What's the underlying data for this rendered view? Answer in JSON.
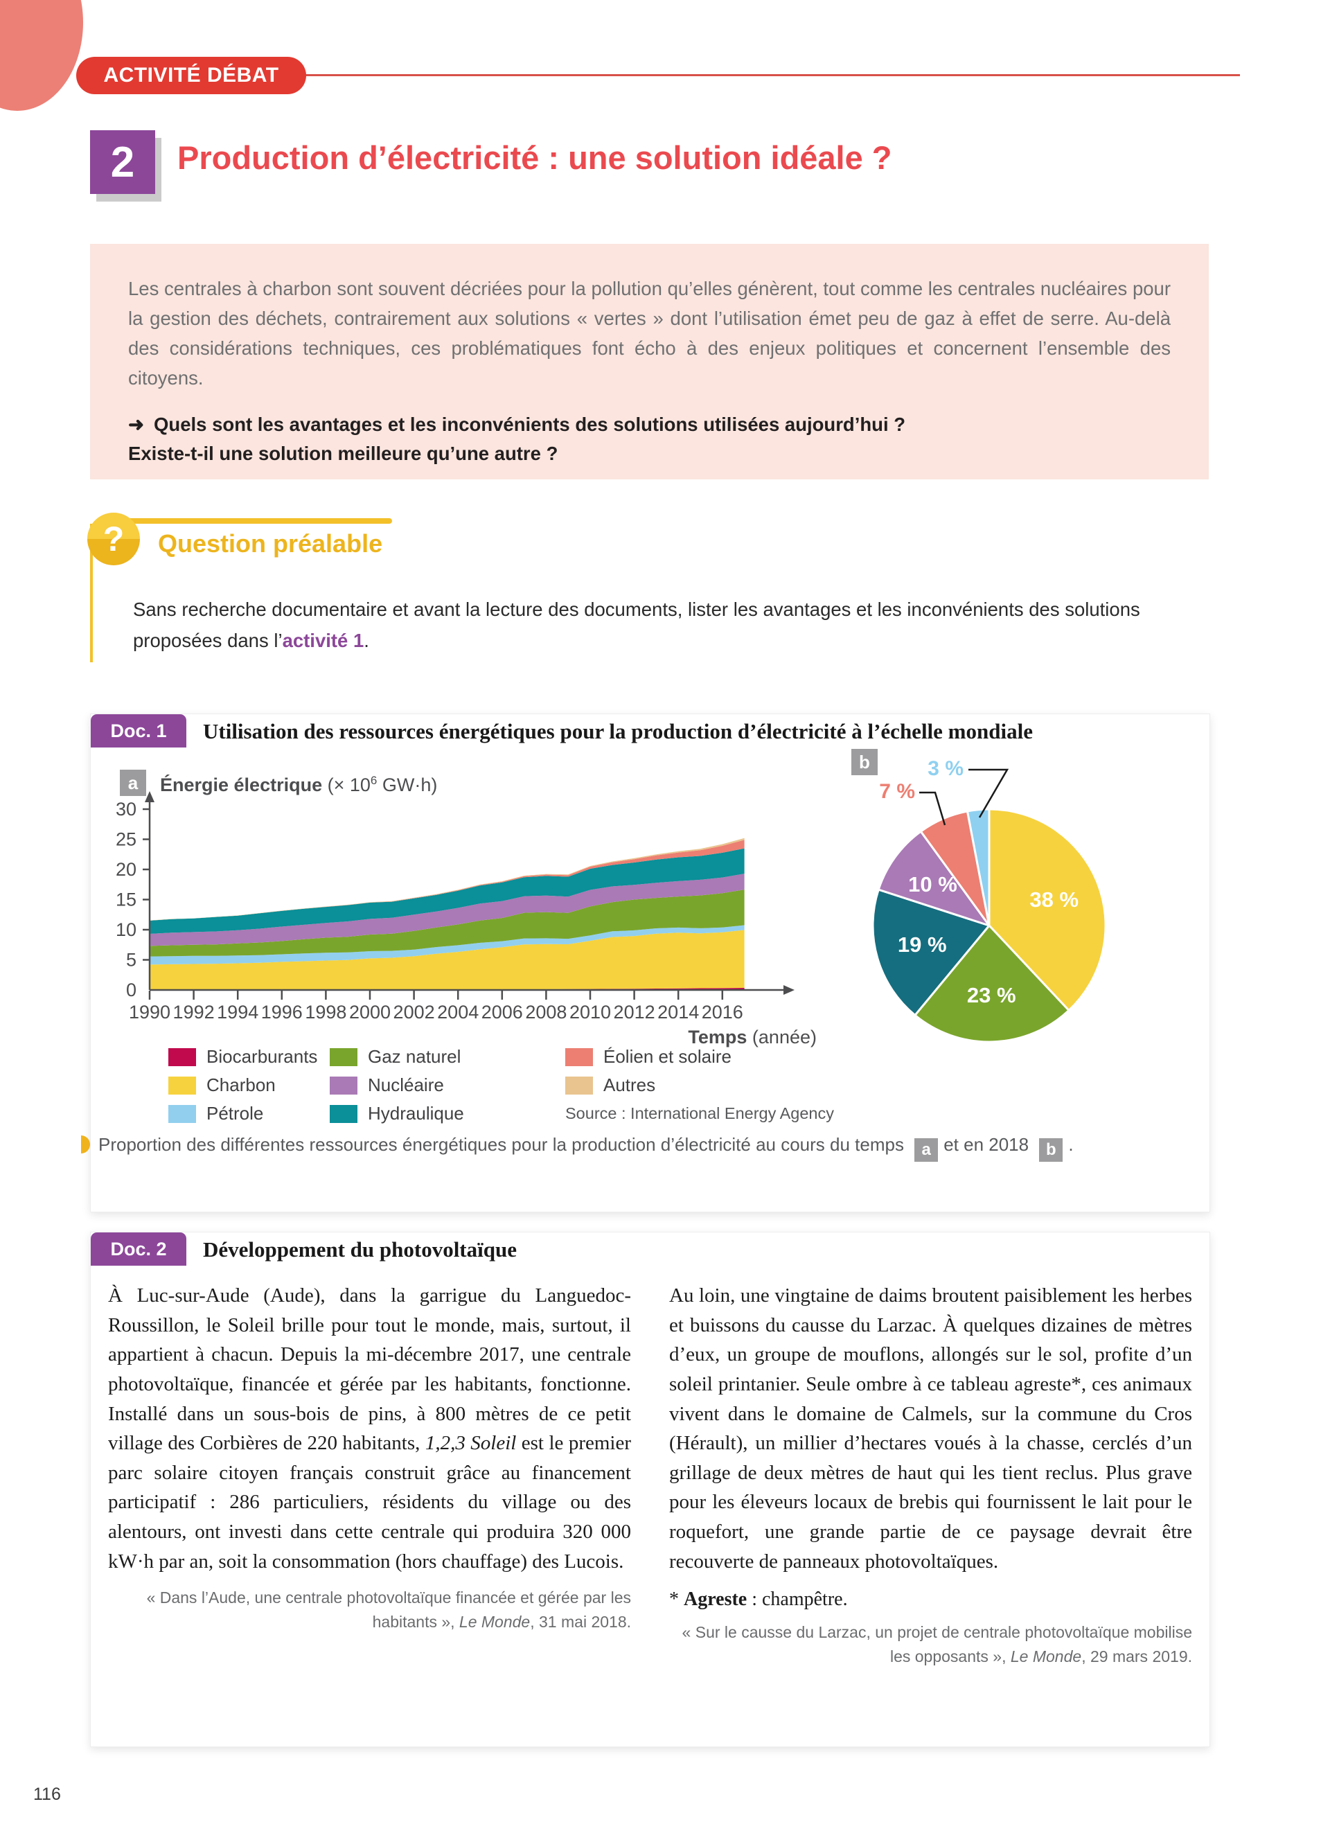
{
  "page": {
    "number": "116"
  },
  "banner": {
    "label": "ACTIVITÉ DÉBAT"
  },
  "header": {
    "number": "2",
    "title": "Production d’électricité : une solution idéale ?"
  },
  "intro": {
    "paragraph": "Les centrales à charbon sont souvent décriées pour la pollution qu’elles génèrent, tout comme les centrales nucléaires pour la gestion des déchets, contrairement aux solutions « vertes » dont l’utilisation émet peu de gaz à effet de serre. Au-delà des considérations techniques, ces problématiques font écho à des enjeux politiques et concernent l’ensemble des citoyens.",
    "arrow_icon": "➜",
    "question_line1": "Quels sont les avantages et les inconvénients des solutions utilisées aujourd’hui ?",
    "question_line2": "Existe-t-il une solution meilleure qu’une autre ?"
  },
  "question_prealable": {
    "icon": "?",
    "heading": "Question préalable",
    "text_before": "Sans recherche documentaire et avant la lecture des documents, lister les avantages et les inconvénients des solutions proposées dans l’",
    "link_label": "activité 1",
    "text_after": "."
  },
  "doc1": {
    "tab": "Doc. 1",
    "title": "Utilisation des ressources énergétiques pour la production d’électricité à l’échelle mondiale",
    "badge_a": "a",
    "badge_b": "b",
    "caption": {
      "text_main": "Proportion des différentes ressources énergétiques pour la production d’électricité au cours du temps",
      "badge_a": "a",
      "text_mid": "et en 2018",
      "badge_b": "b",
      "text_end": "."
    }
  },
  "chart_data": [
    {
      "type": "area",
      "title_bold": "Énergie électrique",
      "unit_prefix": "(× 10",
      "unit_exp": "6",
      "unit_suffix": " GW·h)",
      "xlabel_bold": "Temps",
      "xlabel_rest": " (année)",
      "ylim": [
        0,
        32
      ],
      "y_ticks": [
        0,
        5,
        10,
        15,
        20,
        25,
        30
      ],
      "x_ticks": [
        1990,
        1992,
        1994,
        1996,
        1998,
        2000,
        2002,
        2004,
        2006,
        2008,
        2010,
        2012,
        2014,
        2016
      ],
      "years": [
        1990,
        1991,
        1992,
        1993,
        1994,
        1995,
        1996,
        1997,
        1998,
        1999,
        2000,
        2001,
        2002,
        2003,
        2004,
        2005,
        2006,
        2007,
        2008,
        2009,
        2010,
        2011,
        2012,
        2013,
        2014,
        2015,
        2016,
        2017
      ],
      "series": [
        {
          "name": "Biocarburants",
          "color": "#c10a4d",
          "values": [
            0.01,
            0.01,
            0.01,
            0.01,
            0.02,
            0.02,
            0.02,
            0.02,
            0.03,
            0.03,
            0.04,
            0.04,
            0.05,
            0.06,
            0.07,
            0.08,
            0.09,
            0.1,
            0.12,
            0.14,
            0.16,
            0.18,
            0.2,
            0.23,
            0.26,
            0.29,
            0.32,
            0.35
          ]
        },
        {
          "name": "Charbon",
          "color": "#f6d23e",
          "values": [
            4.2,
            4.25,
            4.3,
            4.35,
            4.4,
            4.5,
            4.65,
            4.75,
            4.85,
            4.95,
            5.2,
            5.3,
            5.55,
            5.95,
            6.25,
            6.65,
            7.0,
            7.45,
            7.5,
            7.45,
            8.0,
            8.6,
            8.75,
            9.1,
            9.25,
            9.1,
            9.25,
            9.6
          ]
        },
        {
          "name": "Pétrole",
          "color": "#92cfee",
          "values": [
            1.35,
            1.35,
            1.35,
            1.3,
            1.3,
            1.25,
            1.25,
            1.3,
            1.3,
            1.25,
            1.2,
            1.15,
            1.1,
            1.1,
            1.1,
            1.1,
            1.0,
            1.0,
            0.95,
            0.9,
            0.9,
            0.95,
            0.95,
            0.9,
            0.85,
            0.85,
            0.8,
            0.8
          ]
        },
        {
          "name": "Gaz naturel",
          "color": "#7aa52c",
          "values": [
            1.75,
            1.8,
            1.85,
            1.9,
            2.0,
            2.1,
            2.2,
            2.35,
            2.5,
            2.6,
            2.75,
            2.85,
            3.1,
            3.25,
            3.45,
            3.7,
            3.85,
            4.25,
            4.35,
            4.3,
            4.8,
            4.85,
            5.1,
            5.05,
            5.15,
            5.45,
            5.7,
            5.9
          ]
        },
        {
          "name": "Nucléaire",
          "color": "#a97ab5",
          "values": [
            2.0,
            2.1,
            2.1,
            2.15,
            2.2,
            2.3,
            2.4,
            2.4,
            2.45,
            2.55,
            2.6,
            2.65,
            2.7,
            2.65,
            2.75,
            2.8,
            2.8,
            2.75,
            2.75,
            2.7,
            2.75,
            2.6,
            2.45,
            2.5,
            2.55,
            2.6,
            2.6,
            2.65
          ]
        },
        {
          "name": "Hydraulique",
          "color": "#0b8f98",
          "values": [
            2.2,
            2.25,
            2.25,
            2.4,
            2.4,
            2.55,
            2.6,
            2.65,
            2.65,
            2.7,
            2.7,
            2.65,
            2.7,
            2.75,
            2.85,
            3.0,
            3.1,
            3.15,
            3.25,
            3.3,
            3.5,
            3.55,
            3.7,
            3.85,
            3.95,
            3.95,
            4.1,
            4.2
          ]
        },
        {
          "name": "Éolien et solaire",
          "color": "#ec7f72",
          "values": [
            0.0,
            0.0,
            0.0,
            0.0,
            0.01,
            0.01,
            0.01,
            0.01,
            0.02,
            0.02,
            0.03,
            0.04,
            0.05,
            0.06,
            0.08,
            0.1,
            0.13,
            0.17,
            0.22,
            0.27,
            0.35,
            0.45,
            0.55,
            0.7,
            0.8,
            0.95,
            1.15,
            1.4
          ]
        },
        {
          "name": "Autres",
          "color": "#e9c48f",
          "values": [
            0.03,
            0.03,
            0.03,
            0.03,
            0.04,
            0.04,
            0.04,
            0.04,
            0.05,
            0.05,
            0.05,
            0.05,
            0.06,
            0.06,
            0.07,
            0.08,
            0.08,
            0.09,
            0.1,
            0.11,
            0.12,
            0.14,
            0.16,
            0.18,
            0.21,
            0.24,
            0.27,
            0.3
          ]
        }
      ],
      "legend_columns": [
        [
          {
            "label": "Biocarburants",
            "color": "#c10a4d"
          },
          {
            "label": "Charbon",
            "color": "#f6d23e"
          },
          {
            "label": "Pétrole",
            "color": "#92cfee"
          }
        ],
        [
          {
            "label": "Gaz naturel",
            "color": "#7aa52c"
          },
          {
            "label": "Nucléaire",
            "color": "#a97ab5"
          },
          {
            "label": "Hydraulique",
            "color": "#0b8f98"
          }
        ],
        [
          {
            "label": "Éolien et solaire",
            "color": "#ec7f72"
          },
          {
            "label": "Autres",
            "color": "#e9c48f"
          },
          {
            "source": true,
            "label": "Source : International Energy Agency"
          }
        ]
      ]
    },
    {
      "type": "pie",
      "year": "2018",
      "slices": [
        {
          "label": "Charbon",
          "pct": 38,
          "pct_label": "38 %",
          "color": "#f6d23e"
        },
        {
          "label": "Gaz naturel",
          "pct": 23,
          "pct_label": "23 %",
          "color": "#7aa52c"
        },
        {
          "label": "Hydraulique",
          "pct": 19,
          "pct_label": "19 %",
          "color": "#156e7f"
        },
        {
          "label": "Nucléaire",
          "pct": 10,
          "pct_label": "10 %",
          "color": "#a97ab5"
        },
        {
          "label": "Éolien et solaire",
          "pct": 7,
          "pct_label": "7 %",
          "color": "#ec7f72"
        },
        {
          "label": "Pétrole",
          "pct": 3,
          "pct_label": "3 %",
          "color": "#8fd0f0"
        }
      ]
    }
  ],
  "doc2": {
    "tab": "Doc. 2",
    "title": "Développement du photovoltaïque",
    "left": {
      "p_before": "À Luc-sur-Aude (Aude), dans la garrigue du Languedoc-Roussillon, le Soleil brille pour tout le monde, mais, surtout, il appartient à chacun. Depuis la mi-décembre 2017, une centrale photovoltaïque, financée et gérée par les habitants, fonctionne. Installé dans un sous-bois de pins, à 800 mètres de ce petit village des Corbières de 220 habitants, ",
      "p_italic": "1,2,3 Soleil",
      "p_after": " est le premier parc solaire citoyen français construit grâce au financement participatif : 286 particuliers, résidents du village ou des alentours, ont investi dans cette centrale qui produira 320 000 kW·h par an, soit la consommation (hors chauffage) des Lucois.",
      "cite_before": "« Dans l’Aude, une centrale photovoltaïque financée et gérée par les habitants », ",
      "cite_italic": "Le Monde",
      "cite_after": ", 31 mai 2018."
    },
    "right": {
      "paragraph": "Au loin, une vingtaine de daims broutent paisiblement les herbes et buissons du causse du Larzac. À quelques dizaines de mètres d’eux, un groupe de mouflons, allongés sur le sol, profite d’un soleil printanier. Seule ombre à ce tableau agreste*, ces animaux vivent dans le domaine de Calmels, sur la commune du Cros (Hérault), un millier d’hectares voués à la chasse, cerclés d’un grillage de deux mètres de haut qui les tient reclus. Plus grave pour les éleveurs locaux de brebis qui fournissent le lait pour le roquefort, une grande partie de ce paysage devrait être recouverte de panneaux photovoltaïques.",
      "footnote_star": "* ",
      "footnote_term": "Agreste",
      "footnote_def": " : champêtre.",
      "cite_before": "« Sur le causse du Larzac, un projet de centrale photovoltaïque mobilise les opposants », ",
      "cite_italic": "Le Monde",
      "cite_after": ", 29 mars 2019."
    }
  }
}
